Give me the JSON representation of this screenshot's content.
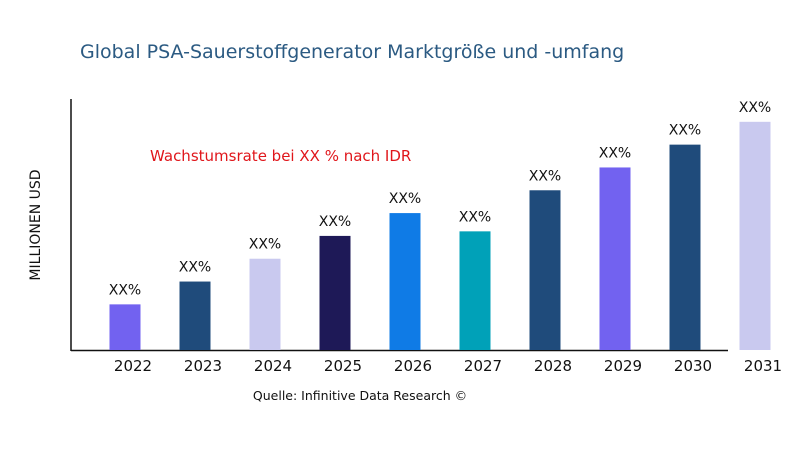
{
  "chart_data": {
    "type": "bar",
    "title": "Global PSA-Sauerstoffgenerator Marktgröße und -umfang",
    "xlabel": "",
    "ylabel": "MILLIONEN USD",
    "categories": [
      "2022",
      "2023",
      "2024",
      "2025",
      "2026",
      "2027",
      "2028",
      "2029",
      "2030",
      "2031"
    ],
    "values": [
      2.0,
      3.0,
      4.0,
      5.0,
      6.0,
      5.2,
      7.0,
      8.0,
      9.0,
      10.0
    ],
    "data_labels": [
      "XX%",
      "XX%",
      "XX%",
      "XX%",
      "XX%",
      "XX%",
      "XX%",
      "XX%",
      "XX%",
      "XX%"
    ],
    "colors": [
      "#7262f0",
      "#1f4b7b",
      "#c9c9ef",
      "#1e1957",
      "#0f7be6",
      "#00a1b8",
      "#1f4b7b",
      "#7262f0",
      "#1f4b7b",
      "#c9c9ef"
    ],
    "ylim": [
      0,
      11
    ],
    "grid": false,
    "annotation": "Wachstumsrate bei XX % nach IDR",
    "annotation_color": "#e0161b",
    "source": "Quelle: Infinitive Data Research ©"
  }
}
